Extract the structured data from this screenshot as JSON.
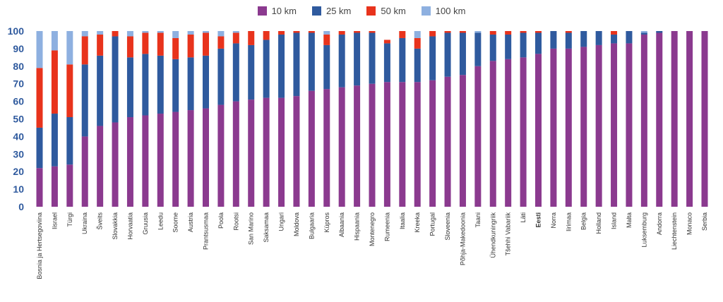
{
  "chart_data": {
    "type": "bar",
    "stacked": true,
    "title": "",
    "xlabel": "",
    "ylabel": "",
    "ylim": [
      0,
      100
    ],
    "yticks": [
      "0",
      "10",
      "20",
      "30",
      "40",
      "50",
      "60",
      "70",
      "80",
      "90",
      "100"
    ],
    "grid": false,
    "legend_position": "top-center",
    "categories": [
      "Bosnia ja Hertsegoviina",
      "Iisrael",
      "Türgi",
      "Ukraina",
      "Šveits",
      "Slovakkia",
      "Horvaatia",
      "Gruusia",
      "Leedu",
      "Soome",
      "Austria",
      "Prantsusmaa",
      "Poola",
      "Rootsi",
      "San Marino",
      "Saksamaa",
      "Ungari",
      "Moldova",
      "Bulgaaria",
      "Küpros",
      "Albaania",
      "Hispaania",
      "Montenegro",
      "Rumeenia",
      "Itaalia",
      "Kreeka",
      "Portugal",
      "Sloveenia",
      "Põhja-Makedoonia",
      "Taani",
      "Ühendkuningriik",
      "Tšehhi Vabariik",
      "Läti",
      "Eesti",
      "Norra",
      "Iirimaa",
      "Belgia",
      "Holland",
      "Island",
      "Malta",
      "Luksemburg",
      "Andorra",
      "Liechtenstein",
      "Monaco",
      "Serbia"
    ],
    "bold_categories": [
      "Eesti"
    ],
    "series": [
      {
        "name": "10 km",
        "color": "#8b3a8f",
        "values": [
          22,
          23,
          24,
          40,
          46,
          48,
          51,
          52,
          53,
          54,
          55,
          56,
          58,
          60,
          61,
          62,
          62,
          63,
          66,
          67,
          68,
          69,
          70,
          71,
          71,
          71,
          72,
          74,
          75,
          80,
          83,
          84,
          85,
          87,
          90,
          90,
          91,
          92,
          93,
          93,
          98,
          99,
          100,
          100,
          100
        ]
      },
      {
        "name": "25 km",
        "color": "#2f5a9e",
        "values": [
          23,
          30,
          27,
          41,
          40,
          49,
          34,
          35,
          33,
          30,
          30,
          30,
          32,
          33,
          31,
          33,
          36,
          36,
          33,
          25,
          30,
          30,
          29,
          22,
          25,
          19,
          25,
          25,
          24,
          19,
          15,
          14,
          14,
          12,
          10,
          9,
          9,
          8,
          5,
          7,
          1,
          1,
          0,
          0,
          0
        ]
      },
      {
        "name": "50 km",
        "color": "#e8331c",
        "values": [
          34,
          36,
          30,
          16,
          12,
          3,
          12,
          12,
          13,
          12,
          13,
          13,
          7,
          6,
          8,
          5,
          2,
          1,
          1,
          6,
          2,
          1,
          1,
          2,
          4,
          6,
          3,
          1,
          1,
          0,
          2,
          2,
          1,
          1,
          0,
          1,
          0,
          0,
          2,
          0,
          0,
          0,
          0,
          0,
          0
        ]
      },
      {
        "name": "100 km",
        "color": "#8eb0e0",
        "values": [
          21,
          11,
          19,
          3,
          2,
          0,
          3,
          1,
          1,
          4,
          2,
          1,
          3,
          1,
          0,
          0,
          0,
          0,
          0,
          2,
          0,
          0,
          0,
          0,
          0,
          4,
          0,
          0,
          0,
          1,
          0,
          0,
          0,
          0,
          0,
          0,
          0,
          0,
          0,
          0,
          1,
          0,
          0,
          0,
          0
        ]
      }
    ]
  }
}
